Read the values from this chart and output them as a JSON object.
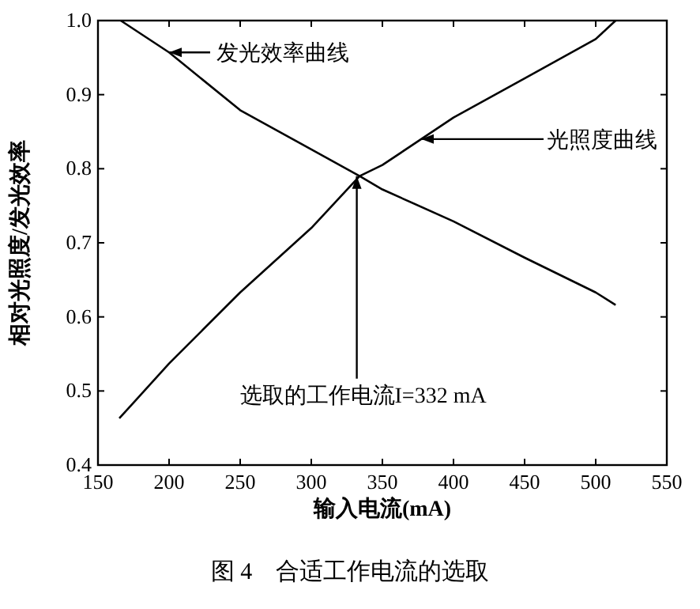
{
  "chart_data": {
    "type": "line",
    "title": "图 4　合适工作电流的选取",
    "xlabel": "输入电流(mA)",
    "ylabel": "相对光照度/发光效率",
    "xlim": [
      150,
      550
    ],
    "xticks": [
      150,
      200,
      250,
      300,
      350,
      400,
      450,
      500,
      550
    ],
    "ylim": [
      0.4,
      1.0
    ],
    "yticks": [
      {
        "value": 0.4,
        "label": "0.4"
      },
      {
        "value": 0.5,
        "label": "0.5"
      },
      {
        "value": 0.6,
        "label": "0.6"
      },
      {
        "value": 0.7,
        "label": "0.7"
      },
      {
        "value": 0.8,
        "label": "0.8"
      },
      {
        "value": 0.9,
        "label": "0.9"
      },
      {
        "value": 1.0,
        "label": "1.0"
      }
    ],
    "grid": false,
    "marker": "none",
    "line_style": "solid",
    "series": [
      {
        "color": "#000000",
        "x": [
          166,
          200,
          250,
          300,
          334,
          350,
          400,
          450,
          500,
          514
        ],
        "values": [
          1.0,
          0.957,
          0.879,
          0.826,
          0.79,
          0.772,
          0.729,
          0.68,
          0.633,
          0.616
        ]
      },
      {
        "color": "#000000",
        "x": [
          165,
          200,
          250,
          300,
          334,
          350,
          400,
          450,
          500,
          514
        ],
        "values": [
          0.463,
          0.537,
          0.633,
          0.72,
          0.79,
          0.805,
          0.869,
          0.922,
          0.975,
          1.0
        ]
      }
    ],
    "annotations": [
      {
        "text": "发光效率曲线",
        "x": 200,
        "y": 0.957
      },
      {
        "text": "光照度曲线",
        "x": 375,
        "y": 0.84
      },
      {
        "text": "选取的工作电流I=332 mA",
        "x": 332,
        "y": 0.79
      }
    ]
  }
}
